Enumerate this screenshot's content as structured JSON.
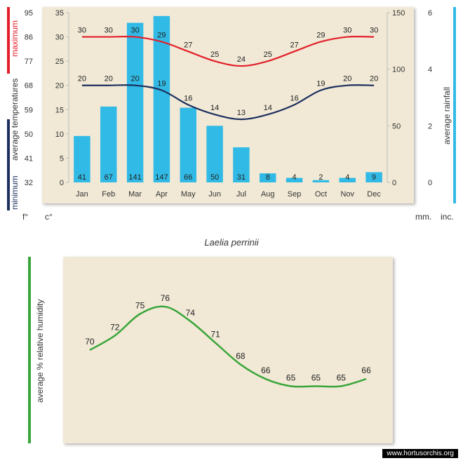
{
  "title": "Laelia perrinii",
  "credit": "www.hortusorchis.org",
  "months": [
    "Jan",
    "Feb",
    "Mar",
    "Apr",
    "May",
    "Jun",
    "Jul",
    "Aug",
    "Sep",
    "Oct",
    "Nov",
    "Dec"
  ],
  "top_chart": {
    "type": "bar+line",
    "background_color": "#f1e9d6",
    "bar_color": "#31bae5",
    "line_max": {
      "label": "maximum",
      "color": "#e3202a",
      "width": 2.2,
      "values": [
        30,
        30,
        30,
        29,
        27,
        25,
        24,
        25,
        27,
        29,
        30,
        30
      ]
    },
    "line_min": {
      "label": "minimum",
      "color": "#1c2f5e",
      "width": 2.2,
      "values": [
        20,
        20,
        20,
        19,
        16,
        14,
        13,
        14,
        16,
        19,
        20,
        20
      ]
    },
    "rainfall_mm": [
      41,
      67,
      141,
      147,
      66,
      50,
      31,
      8,
      4,
      2,
      4,
      9
    ],
    "rain_max_mm": 150,
    "left_c": {
      "label": "c°",
      "min": 0,
      "max": 35,
      "ticks": [
        0,
        5,
        10,
        15,
        20,
        25,
        30,
        35
      ]
    },
    "left_f": {
      "label": "f°",
      "ticks": [
        32,
        41,
        50,
        59,
        68,
        77,
        86,
        95
      ]
    },
    "right_mm": {
      "label": "mm.",
      "ticks": [
        0,
        50,
        100,
        150
      ]
    },
    "right_in": {
      "label": "inc.",
      "ticks": [
        0,
        2,
        4,
        6
      ]
    },
    "avg_temp_label": "average  temperatures",
    "avg_rain_label": "average rainfall",
    "data_label_fontsize": 11,
    "tick_fontsize": 11
  },
  "humidity_chart": {
    "type": "line",
    "background_color": "#f1e9d6",
    "color": "#3aa53a",
    "width": 2.5,
    "values": [
      70,
      72,
      75,
      76,
      74,
      71,
      68,
      66,
      65,
      65,
      65,
      66
    ],
    "ymin": 60,
    "ymax": 80,
    "axis_label": "average %  relative humidity",
    "data_label_fontsize": 12
  },
  "colors": {
    "bg": "#f1e9d6",
    "bar": "#31bae5",
    "max": "#e3202a",
    "min": "#1c2f5e",
    "hum": "#3aa53a",
    "tick_line": "#bdbdbd",
    "white_bar": "#ffffff",
    "text": "#333333"
  }
}
